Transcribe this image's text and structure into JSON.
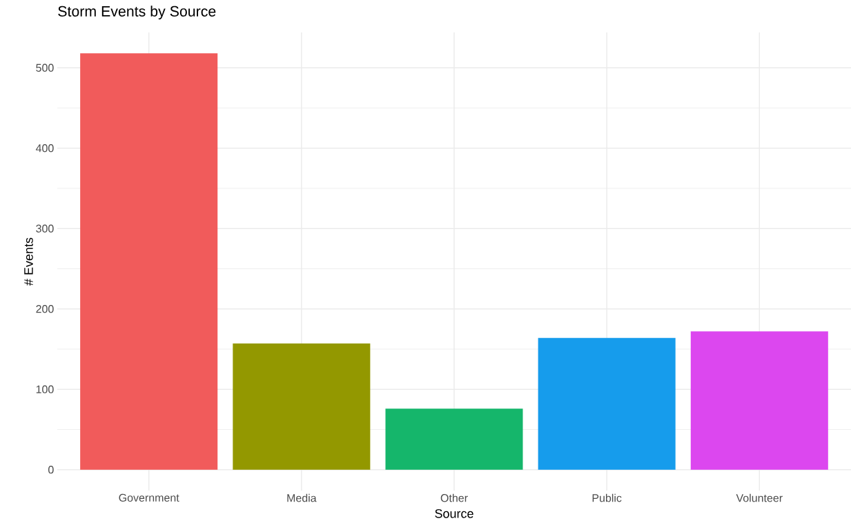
{
  "chart_data": {
    "type": "bar",
    "title": "Storm Events by Source",
    "xlabel": "Source",
    "ylabel": "# Events",
    "categories": [
      "Government",
      "Media",
      "Other",
      "Public",
      "Volunteer"
    ],
    "values": [
      518,
      157,
      76,
      164,
      172
    ],
    "colors": [
      "#F15B5B",
      "#939800",
      "#15B66B",
      "#169CEC",
      "#DC47EF"
    ],
    "ylim": [
      -26,
      544
    ],
    "yticks": [
      0,
      100,
      200,
      300,
      400,
      500
    ],
    "grid": true
  }
}
